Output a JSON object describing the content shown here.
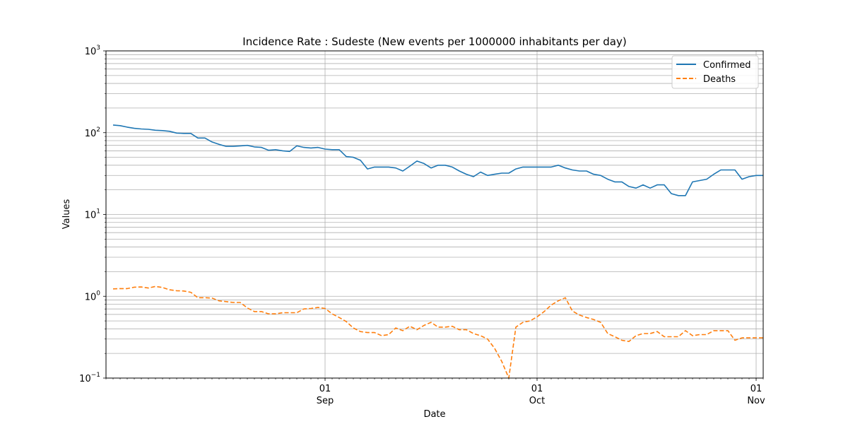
{
  "chart_data": {
    "type": "line",
    "title": "Incidence Rate : Sudeste  (New events per 1000000 inhabitants per day)",
    "xlabel": "Date",
    "ylabel": "Values",
    "yscale": "log",
    "ylim": [
      0.1,
      1000
    ],
    "xlim": [
      "2020-08-01",
      "2020-11-02"
    ],
    "y_ticks": [
      {
        "value": 0.1,
        "base": "10",
        "exp": "−1"
      },
      {
        "value": 1,
        "base": "10",
        "exp": "0"
      },
      {
        "value": 10,
        "base": "10",
        "exp": "1"
      },
      {
        "value": 100,
        "base": "10",
        "exp": "2"
      },
      {
        "value": 1000,
        "base": "10",
        "exp": "3"
      }
    ],
    "x_ticks": [
      {
        "date": "2020-09-01",
        "day": "01",
        "month": "Sep"
      },
      {
        "date": "2020-10-01",
        "day": "01",
        "month": "Oct"
      },
      {
        "date": "2020-11-01",
        "day": "01",
        "month": "Nov"
      }
    ],
    "grid": true,
    "legend_position": "upper right",
    "x": [
      "2020-08-02",
      "2020-08-03",
      "2020-08-04",
      "2020-08-05",
      "2020-08-06",
      "2020-08-07",
      "2020-08-08",
      "2020-08-09",
      "2020-08-10",
      "2020-08-11",
      "2020-08-12",
      "2020-08-13",
      "2020-08-14",
      "2020-08-15",
      "2020-08-16",
      "2020-08-17",
      "2020-08-18",
      "2020-08-19",
      "2020-08-20",
      "2020-08-21",
      "2020-08-22",
      "2020-08-23",
      "2020-08-24",
      "2020-08-25",
      "2020-08-26",
      "2020-08-27",
      "2020-08-28",
      "2020-08-29",
      "2020-08-30",
      "2020-08-31",
      "2020-09-01",
      "2020-09-02",
      "2020-09-03",
      "2020-09-04",
      "2020-09-05",
      "2020-09-06",
      "2020-09-07",
      "2020-09-08",
      "2020-09-09",
      "2020-09-10",
      "2020-09-11",
      "2020-09-12",
      "2020-09-13",
      "2020-09-14",
      "2020-09-15",
      "2020-09-16",
      "2020-09-17",
      "2020-09-18",
      "2020-09-19",
      "2020-09-20",
      "2020-09-21",
      "2020-09-22",
      "2020-09-23",
      "2020-09-24",
      "2020-09-25",
      "2020-09-26",
      "2020-09-27",
      "2020-09-28",
      "2020-09-29",
      "2020-09-30",
      "2020-10-01",
      "2020-10-02",
      "2020-10-03",
      "2020-10-04",
      "2020-10-05",
      "2020-10-06",
      "2020-10-07",
      "2020-10-08",
      "2020-10-09",
      "2020-10-10",
      "2020-10-11",
      "2020-10-12",
      "2020-10-13",
      "2020-10-14",
      "2020-10-15",
      "2020-10-16",
      "2020-10-17",
      "2020-10-18",
      "2020-10-19",
      "2020-10-20",
      "2020-10-21",
      "2020-10-22",
      "2020-10-23",
      "2020-10-24",
      "2020-10-25",
      "2020-10-26",
      "2020-10-27",
      "2020-10-28",
      "2020-10-29",
      "2020-10-30",
      "2020-10-31",
      "2020-11-01",
      "2020-11-02"
    ],
    "series": [
      {
        "name": "Confirmed",
        "color": "#1f77b4",
        "style": "solid",
        "values": [
          124,
          122,
          117,
          113,
          111,
          110,
          107,
          106,
          104,
          99,
          98,
          98,
          86,
          86,
          77,
          72,
          68,
          68,
          69,
          70,
          67,
          66,
          61,
          62,
          60,
          59,
          69,
          66,
          65,
          66,
          63,
          62,
          62,
          51,
          50,
          46,
          36,
          38,
          38,
          38,
          37,
          34,
          39,
          45,
          42,
          37,
          40,
          40,
          38,
          34,
          31,
          29,
          33,
          30,
          31,
          32,
          32,
          36,
          38,
          38,
          38,
          38,
          38,
          40,
          37,
          35,
          34,
          34,
          31,
          30,
          27,
          25,
          25,
          22,
          21,
          23,
          21,
          23,
          23,
          18,
          17,
          17,
          25,
          26,
          27,
          31,
          35,
          35,
          35,
          27,
          29,
          30,
          30
        ]
      },
      {
        "name": "Deaths",
        "color": "#ff7f0e",
        "style": "dashed",
        "values": [
          1.23,
          1.24,
          1.24,
          1.29,
          1.3,
          1.26,
          1.32,
          1.28,
          1.2,
          1.17,
          1.16,
          1.12,
          0.96,
          0.96,
          0.95,
          0.88,
          0.86,
          0.84,
          0.84,
          0.72,
          0.65,
          0.65,
          0.61,
          0.61,
          0.63,
          0.63,
          0.63,
          0.7,
          0.71,
          0.73,
          0.71,
          0.61,
          0.55,
          0.49,
          0.41,
          0.37,
          0.36,
          0.36,
          0.33,
          0.34,
          0.41,
          0.38,
          0.43,
          0.39,
          0.44,
          0.48,
          0.42,
          0.42,
          0.43,
          0.39,
          0.39,
          0.35,
          0.33,
          0.3,
          0.23,
          0.16,
          0.1,
          0.42,
          0.48,
          0.5,
          0.56,
          0.65,
          0.78,
          0.88,
          0.96,
          0.66,
          0.59,
          0.55,
          0.52,
          0.48,
          0.35,
          0.32,
          0.29,
          0.28,
          0.33,
          0.35,
          0.35,
          0.37,
          0.32,
          0.32,
          0.32,
          0.38,
          0.33,
          0.34,
          0.34,
          0.38,
          0.38,
          0.38,
          0.29,
          0.31,
          0.31,
          0.31,
          0.31
        ]
      }
    ]
  }
}
